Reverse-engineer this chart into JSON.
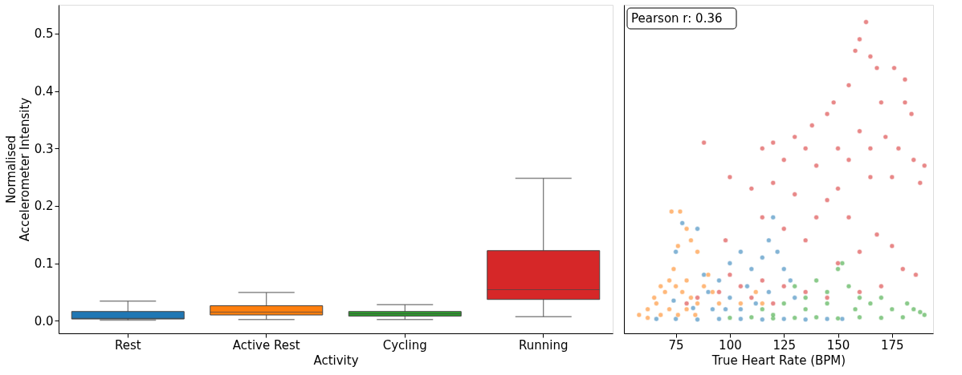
{
  "chart_data": [
    {
      "type": "box",
      "xlabel": "Activity",
      "ylabel": "Normalised\nAccelerometer Intensity",
      "categories": [
        "Rest",
        "Active Rest",
        "Cycling",
        "Running"
      ],
      "colors": [
        "#1f77b4",
        "#ff7f0e",
        "#2ca02c",
        "#d62728"
      ],
      "boxes": [
        {
          "low": 0.001,
          "q1": 0.003,
          "median": 0.004,
          "q3": 0.016,
          "high": 0.034
        },
        {
          "low": 0.002,
          "q1": 0.01,
          "median": 0.015,
          "q3": 0.026,
          "high": 0.049
        },
        {
          "low": 0.002,
          "q1": 0.008,
          "median": 0.012,
          "q3": 0.016,
          "high": 0.028
        },
        {
          "low": 0.007,
          "q1": 0.037,
          "median": 0.054,
          "q3": 0.122,
          "high": 0.248
        }
      ],
      "ylim": [
        -0.022,
        0.55
      ],
      "yticks": [
        {
          "value": 0,
          "label": "0.0"
        },
        0.1,
        0.2,
        0.3,
        0.4,
        0.5
      ],
      "grid": false,
      "legend": false
    },
    {
      "type": "scatter",
      "xlabel": "True Heart Rate (BPM)",
      "annotations": [
        "Pearson r: 0.36"
      ],
      "series": [
        {
          "color": "#1f77b4",
          "x": [
            66,
            75,
            85,
            95,
            105,
            115,
            125,
            135,
            145,
            152,
            74,
            83,
            78,
            85,
            75,
            90,
            95,
            100,
            105,
            110,
            115,
            118,
            120,
            122,
            125,
            128,
            130,
            108,
            100,
            92,
            112,
            118,
            105,
            88,
            98
          ],
          "values": [
            0.003,
            0.003,
            0.002,
            0.003,
            0.003,
            0.002,
            0.003,
            0.002,
            0.003,
            0.003,
            0.035,
            0.022,
            0.17,
            0.16,
            0.12,
            0.05,
            0.07,
            0.1,
            0.12,
            0.09,
            0.11,
            0.14,
            0.18,
            0.12,
            0.09,
            0.07,
            0.04,
            0.06,
            0.04,
            0.02,
            0.03,
            0.05,
            0.02,
            0.08,
            0.02
          ]
        },
        {
          "color": "#ff7f0e",
          "x": [
            58,
            62,
            65,
            68,
            70,
            72,
            75,
            78,
            80,
            82,
            85,
            88,
            90,
            92,
            95,
            68,
            72,
            76,
            80,
            84,
            73,
            77,
            80,
            82,
            76,
            85,
            74,
            112,
            115,
            105,
            62,
            66
          ],
          "values": [
            0.01,
            0.02,
            0.04,
            0.06,
            0.05,
            0.07,
            0.06,
            0.05,
            0.07,
            0.04,
            0.03,
            0.06,
            0.08,
            0.05,
            0.03,
            0.01,
            0.02,
            0.01,
            0.02,
            0.01,
            0.19,
            0.19,
            0.16,
            0.14,
            0.13,
            0.12,
            0.09,
            0.05,
            0.03,
            0.03,
            0.005,
            0.03
          ]
        },
        {
          "color": "#2ca02c",
          "x": [
            100,
            110,
            120,
            130,
            140,
            150,
            160,
            170,
            180,
            190,
            115,
            125,
            135,
            145,
            150,
            152,
            140,
            130,
            155,
            160,
            165,
            175,
            185,
            182,
            170,
            145,
            158,
            120,
            135,
            188
          ],
          "values": [
            0.005,
            0.006,
            0.004,
            0.005,
            0.006,
            0.004,
            0.006,
            0.005,
            0.006,
            0.01,
            0.02,
            0.03,
            0.04,
            0.05,
            0.09,
            0.1,
            0.07,
            0.06,
            0.06,
            0.04,
            0.03,
            0.02,
            0.02,
            0.03,
            0.04,
            0.03,
            0.02,
            0.01,
            0.02,
            0.015
          ]
        },
        {
          "color": "#d62728",
          "x": [
            163,
            160,
            158,
            165,
            168,
            176,
            181,
            181,
            184,
            170,
            155,
            148,
            145,
            138,
            130,
            120,
            115,
            88,
            125,
            135,
            140,
            150,
            155,
            160,
            165,
            172,
            178,
            185,
            190,
            188,
            175,
            165,
            150,
            145,
            130,
            120,
            110,
            100,
            140,
            155,
            168,
            160,
            150,
            175,
            180,
            186,
            170,
            160,
            145,
            135,
            125,
            115,
            105,
            95,
            85,
            80,
            110,
            120,
            100,
            135,
            125,
            115,
            98
          ],
          "values": [
            0.52,
            0.49,
            0.47,
            0.46,
            0.44,
            0.44,
            0.42,
            0.38,
            0.36,
            0.38,
            0.41,
            0.38,
            0.36,
            0.34,
            0.32,
            0.31,
            0.3,
            0.31,
            0.28,
            0.3,
            0.27,
            0.3,
            0.28,
            0.33,
            0.3,
            0.32,
            0.3,
            0.28,
            0.27,
            0.24,
            0.25,
            0.25,
            0.23,
            0.21,
            0.22,
            0.24,
            0.23,
            0.25,
            0.18,
            0.18,
            0.15,
            0.12,
            0.1,
            0.13,
            0.09,
            0.08,
            0.06,
            0.05,
            0.04,
            0.05,
            0.06,
            0.07,
            0.06,
            0.05,
            0.04,
            0.03,
            0.04,
            0.03,
            0.08,
            0.14,
            0.16,
            0.18,
            0.14
          ]
        }
      ],
      "xlim": [
        51,
        194
      ],
      "xticks": [
        75,
        100,
        125,
        150,
        175
      ],
      "ylim": [
        -0.022,
        0.55
      ],
      "yticks": [
        0,
        0.1,
        0.2,
        0.3,
        0.4,
        0.5
      ],
      "tick_labels": "x",
      "grid": false,
      "legend": false
    }
  ]
}
